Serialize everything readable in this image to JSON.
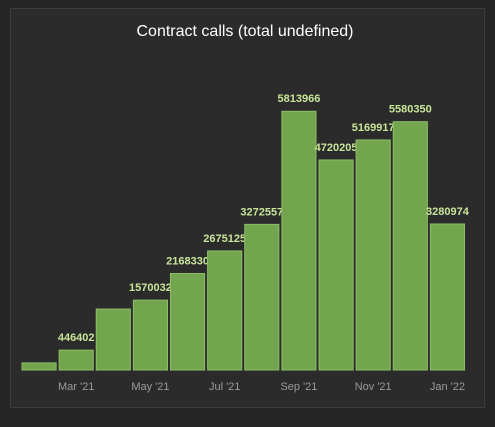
{
  "chart_data": {
    "type": "bar",
    "title": "Contract calls (total undefined)",
    "categories": [
      null,
      "Mar '21",
      null,
      "May '21",
      null,
      "Jul '21",
      null,
      "Sep '21",
      null,
      "Nov '21",
      null,
      "Jan '22"
    ],
    "values": [
      160000,
      446402,
      1370000,
      1570032,
      2168330,
      2675125,
      3272557,
      5813966,
      4720205,
      5169917,
      5580350,
      3280974
    ],
    "show_value_labels": [
      false,
      true,
      false,
      true,
      true,
      true,
      true,
      true,
      true,
      true,
      true,
      true
    ],
    "color": "#73a54e",
    "ylim": [
      0,
      6000000
    ]
  }
}
